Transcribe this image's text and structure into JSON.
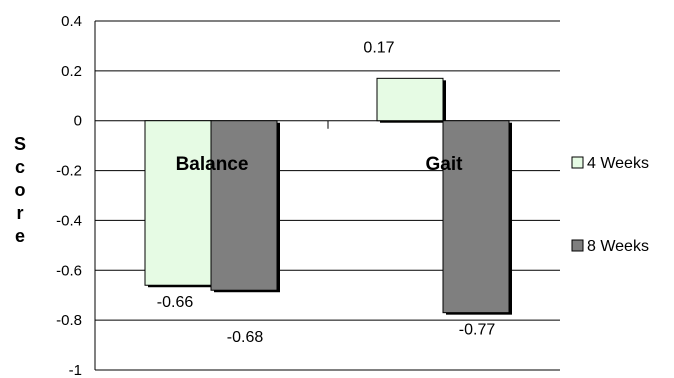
{
  "chart_data": {
    "type": "bar",
    "title": "",
    "xlabel": "",
    "ylabel": "Score",
    "ylim": [
      -1,
      0.4
    ],
    "yticks": [
      0.4,
      0.2,
      0,
      -0.2,
      -0.4,
      -0.6,
      -0.8,
      -1
    ],
    "ytick_labels": [
      "0.4",
      "0.2",
      "0",
      "-0.2",
      "-0.4",
      "-0.6",
      "-0.8",
      "-1"
    ],
    "categories": [
      "Balance",
      "Gait"
    ],
    "series": [
      {
        "name": "4 Weeks",
        "values": [
          -0.66,
          0.17
        ],
        "labels": [
          "-0.66",
          "0.17"
        ],
        "color": "#e6fbe4"
      },
      {
        "name": "8 Weeks",
        "values": [
          -0.68,
          -0.77
        ],
        "labels": [
          "-0.68",
          "-0.77"
        ],
        "color": "#7f7f7f"
      }
    ],
    "grid": true,
    "legend": "right"
  }
}
